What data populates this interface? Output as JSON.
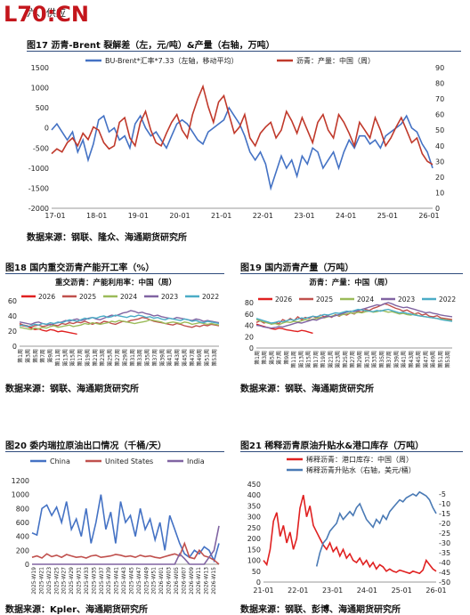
{
  "header": {
    "logo_text": "L70:CN",
    "section": "六、供应"
  },
  "chart_data": [
    {
      "id": "fig17",
      "type": "line",
      "title": "图17  沥青-Brent 裂解差（左，元/吨）&产量（右轴，万吨）",
      "source": "数据来源：钢联、隆众、海通期货研究所",
      "x_ticks": [
        "17-01",
        "18-01",
        "19-01",
        "20-01",
        "21-01",
        "22-01",
        "23-01",
        "24-01",
        "25-01",
        "26-01"
      ],
      "ylim_left": [
        -2000,
        1500
      ],
      "yticks_left": [
        1500,
        1000,
        500,
        0,
        -500,
        -1000,
        -1500,
        -2000
      ],
      "ylim_right": [
        0,
        90
      ],
      "yticks_right": [
        90,
        80,
        70,
        60,
        50,
        40,
        30,
        20,
        10,
        0
      ],
      "series": [
        {
          "name": "BU-Brent*汇率*7.33（左轴，移动平均）",
          "axis": "left",
          "color": "#4472c4",
          "values": [
            -50,
            100,
            -100,
            -300,
            -100,
            -600,
            -300,
            -800,
            -400,
            200,
            300,
            -100,
            0,
            -300,
            -200,
            -500,
            100,
            300,
            0,
            -200,
            -100,
            -300,
            -500,
            -200,
            100,
            200,
            100,
            -100,
            -300,
            -400,
            -100,
            0,
            100,
            200,
            500,
            300,
            100,
            -200,
            -600,
            -800,
            -600,
            -900,
            -1500,
            -1100,
            -700,
            -1000,
            -800,
            -1200,
            -700,
            -900,
            -500,
            -600,
            -1000,
            -800,
            -600,
            -1000,
            -600,
            -300,
            -500,
            -200,
            -200,
            -400,
            -300,
            -500,
            -200,
            -100,
            0,
            100,
            300,
            0,
            -100,
            -400,
            -600,
            -1000
          ]
        },
        {
          "name": "沥青：产量：中国（周）",
          "axis": "right",
          "color": "#c0392b",
          "values": [
            35,
            38,
            36,
            42,
            45,
            40,
            48,
            44,
            52,
            50,
            42,
            38,
            40,
            55,
            58,
            45,
            40,
            55,
            62,
            50,
            42,
            40,
            48,
            55,
            60,
            50,
            45,
            60,
            70,
            78,
            65,
            55,
            68,
            72,
            60,
            48,
            52,
            60,
            45,
            40,
            48,
            52,
            55,
            45,
            50,
            62,
            56,
            48,
            58,
            50,
            42,
            55,
            60,
            50,
            45,
            60,
            55,
            48,
            40,
            55,
            50,
            45,
            58,
            50,
            40,
            45,
            52,
            58,
            50,
            42,
            45,
            35,
            30,
            28
          ]
        }
      ]
    },
    {
      "id": "fig18",
      "type": "line",
      "title": "图18  国内重交沥青产能开工率（%）",
      "subtitle": "重交沥青：产能利用率：中国（周）",
      "source": "数据来源：钢联、海通期货研究所",
      "ylim": [
        0,
        60
      ],
      "yticks": [
        60,
        40,
        20,
        0
      ],
      "x_ticks": [
        "第1周",
        "第3周",
        "第5周",
        "第7周",
        "第9周",
        "第11周",
        "第13周",
        "第15周",
        "第17周",
        "第19周",
        "第21周",
        "第23周",
        "第25周",
        "第27周",
        "第29周",
        "第31周",
        "第33周",
        "第35周",
        "第37周",
        "第39周",
        "第41周",
        "第43周",
        "第45周",
        "第47周",
        "第49周",
        "第51周",
        "第53周"
      ],
      "series": [
        {
          "name": "2026",
          "color": "#e02020",
          "values": [
            28,
            27,
            26,
            24,
            22,
            23,
            21,
            20,
            22,
            21,
            19,
            20,
            19,
            18,
            17,
            16
          ]
        },
        {
          "name": "2025",
          "color": "#c0504d",
          "values": [
            30,
            28,
            27,
            25,
            27,
            28,
            26,
            27,
            29,
            28,
            27,
            30,
            29,
            31,
            30,
            32,
            31,
            33,
            31,
            29,
            31,
            30,
            33,
            32,
            30,
            29,
            31,
            33,
            32,
            34,
            35,
            36,
            38,
            37,
            35,
            33,
            32,
            31,
            30,
            29,
            28,
            30,
            29,
            27,
            26,
            25,
            27,
            26,
            28,
            27,
            29,
            28,
            27
          ]
        },
        {
          "name": "2024",
          "color": "#9bbb59",
          "values": [
            25,
            24,
            23,
            22,
            24,
            23,
            25,
            24,
            26,
            27,
            25,
            26,
            27,
            28,
            26,
            27,
            28,
            30,
            29,
            31,
            30,
            29,
            30,
            31,
            33,
            32,
            34,
            33,
            32,
            31,
            30,
            31,
            32,
            33,
            35,
            34,
            33,
            32,
            30,
            31,
            32,
            31,
            30,
            32,
            31,
            29,
            30,
            31,
            30,
            29,
            30,
            29,
            28
          ]
        },
        {
          "name": "2023",
          "color": "#8064a2",
          "values": [
            32,
            31,
            30,
            29,
            31,
            32,
            30,
            29,
            28,
            30,
            31,
            32,
            34,
            33,
            35,
            36,
            34,
            35,
            37,
            38,
            36,
            35,
            37,
            39,
            41,
            40,
            42,
            44,
            45,
            47,
            46,
            44,
            45,
            43,
            42,
            40,
            41,
            39,
            38,
            37,
            36,
            38,
            37,
            36,
            35,
            34,
            36,
            35,
            33,
            34,
            33,
            32,
            31
          ]
        },
        {
          "name": "2022",
          "color": "#4bacc6",
          "values": [
            27,
            28,
            26,
            27,
            29,
            28,
            30,
            29,
            31,
            30,
            32,
            31,
            33,
            35,
            34,
            33,
            35,
            37,
            36,
            38,
            37,
            39,
            40,
            38,
            39,
            41,
            40,
            39,
            38,
            40,
            39,
            41,
            40,
            38,
            39,
            37,
            38,
            36,
            35,
            37,
            36,
            35,
            34,
            36,
            35,
            33,
            34,
            32,
            31,
            33,
            32,
            31,
            30
          ]
        }
      ]
    },
    {
      "id": "fig19",
      "type": "line",
      "title": "图19  国内沥青产量（万吨）",
      "subtitle": "沥青：产量：中国（周）",
      "source": "数据来源：钢联、海通期货研究所",
      "ylim": [
        0,
        80
      ],
      "yticks": [
        80,
        60,
        40,
        20,
        0
      ],
      "x_ticks": [
        "第1周",
        "第3周",
        "第5周",
        "第7周",
        "第9周",
        "第11周",
        "第13周",
        "第15周",
        "第17周",
        "第19周",
        "第21周",
        "第23周",
        "第25周",
        "第27周",
        "第29周",
        "第31周",
        "第33周",
        "第35周",
        "第37周",
        "第39周",
        "第41周",
        "第43周",
        "第45周",
        "第47周",
        "第49周",
        "第51周",
        "第53周"
      ],
      "series": [
        {
          "name": "2026",
          "color": "#e02020",
          "values": [
            42,
            40,
            38,
            36,
            34,
            33,
            35,
            34,
            32,
            31,
            30,
            29,
            31,
            30,
            28,
            26
          ]
        },
        {
          "name": "2025",
          "color": "#c0504d",
          "values": [
            45,
            48,
            44,
            46,
            42,
            45,
            43,
            50,
            47,
            52,
            48,
            55,
            50,
            54,
            52,
            56,
            53,
            58,
            55,
            57,
            54,
            59,
            56,
            60,
            58,
            62,
            60,
            65,
            63,
            68,
            66,
            70,
            72,
            75,
            78,
            76,
            73,
            70,
            68,
            65,
            67,
            63,
            60,
            62,
            58,
            60,
            56,
            55,
            57,
            53,
            52,
            51,
            50
          ]
        },
        {
          "name": "2024",
          "color": "#9bbb59",
          "values": [
            50,
            48,
            46,
            44,
            42,
            43,
            41,
            44,
            46,
            45,
            47,
            46,
            48,
            50,
            49,
            51,
            52,
            54,
            53,
            55,
            56,
            58,
            57,
            59,
            60,
            62,
            61,
            63,
            62,
            64,
            65,
            63,
            64,
            66,
            65,
            63,
            64,
            62,
            60,
            61,
            59,
            58,
            60,
            57,
            56,
            55,
            54,
            53,
            52,
            51,
            50,
            49,
            48
          ]
        },
        {
          "name": "2023",
          "color": "#8064a2",
          "values": [
            40,
            39,
            37,
            36,
            35,
            36,
            38,
            37,
            39,
            41,
            43,
            45,
            44,
            46,
            48,
            50,
            49,
            52,
            54,
            56,
            55,
            57,
            59,
            61,
            63,
            65,
            64,
            66,
            68,
            70,
            72,
            74,
            76,
            75,
            78,
            80,
            78,
            75,
            73,
            71,
            72,
            70,
            68,
            66,
            64,
            62,
            63,
            61,
            60,
            58,
            57,
            56,
            55
          ]
        },
        {
          "name": "2022",
          "color": "#4bacc6",
          "values": [
            52,
            50,
            48,
            46,
            44,
            45,
            47,
            46,
            48,
            50,
            49,
            51,
            53,
            52,
            54,
            56,
            55,
            57,
            59,
            58,
            60,
            62,
            61,
            63,
            65,
            64,
            66,
            68,
            67,
            66,
            65,
            64,
            66,
            65,
            67,
            68,
            66,
            64,
            62,
            63,
            61,
            60,
            58,
            57,
            56,
            55,
            54,
            53,
            52,
            50,
            49,
            48,
            47
          ]
        }
      ]
    },
    {
      "id": "fig20",
      "type": "line",
      "title": "图20  委内瑞拉原油出口情况（千桶/天）",
      "source": "数据来源：Kpler、海通期货研究所",
      "ylim": [
        0,
        1200
      ],
      "yticks": [
        1200,
        1000,
        800,
        600,
        400,
        200,
        0
      ],
      "x_ticks": [
        "2025-W19",
        "2025-W21",
        "2025-W23",
        "2025-W25",
        "2025-W27",
        "2025-W29",
        "2025-W31",
        "2025-W33",
        "2025-W35",
        "2025-W37",
        "2025-W39",
        "2025-W41",
        "2025-W43",
        "2025-W45",
        "2025-W47",
        "2025-W49",
        "2025-W51",
        "2026-W01",
        "2026-W03",
        "2026-W05",
        "2026-W07",
        "2026-W09",
        "2026-W11",
        "2026-W13",
        "2026-W15"
      ],
      "series": [
        {
          "name": "China",
          "color": "#4472c4",
          "values": [
            450,
            420,
            800,
            850,
            700,
            820,
            600,
            900,
            500,
            650,
            400,
            800,
            300,
            600,
            1000,
            500,
            750,
            300,
            900,
            600,
            700,
            400,
            800,
            500,
            650,
            350,
            600,
            200,
            700,
            500,
            300,
            150,
            100,
            200,
            150,
            250,
            200,
            50,
            300
          ]
        },
        {
          "name": "United States",
          "color": "#c0504d",
          "values": [
            100,
            120,
            90,
            150,
            110,
            130,
            100,
            140,
            120,
            100,
            110,
            90,
            120,
            130,
            100,
            110,
            120,
            140,
            130,
            110,
            120,
            100,
            130,
            110,
            120,
            100,
            90,
            110,
            130,
            150,
            120,
            300,
            100,
            80,
            200,
            120,
            100,
            60,
            0
          ]
        },
        {
          "name": "India",
          "color": "#8064a2",
          "values": [
            0,
            0,
            0,
            0,
            0,
            0,
            0,
            0,
            0,
            0,
            0,
            0,
            0,
            0,
            0,
            0,
            0,
            0,
            0,
            0,
            0,
            0,
            0,
            0,
            0,
            0,
            0,
            0,
            0,
            0,
            150,
            80,
            0,
            0,
            0,
            0,
            100,
            200,
            550
          ]
        }
      ]
    },
    {
      "id": "fig21",
      "type": "line",
      "title": "图21  稀释沥青原油升贴水&港口库存（万吨）",
      "source": "数据来源：钢联、彭博、海通期货研究所",
      "x_ticks": [
        "21-01",
        "22-01",
        "23-01",
        "24-01",
        "25-01",
        "26-01"
      ],
      "ylim_left": [
        0,
        450
      ],
      "yticks_left": [
        450,
        400,
        350,
        300,
        250,
        200,
        150,
        100,
        50,
        0
      ],
      "ylim_right": [
        -50,
        0
      ],
      "yticks_right": [
        -5,
        -10,
        -15,
        -20,
        -25,
        -30,
        -35,
        -40,
        -45,
        -50
      ],
      "series": [
        {
          "name": "稀释沥青：港口库存：中国（周）",
          "axis": "left",
          "color": "#e02020",
          "values": [
            100,
            80,
            150,
            280,
            320,
            210,
            260,
            180,
            230,
            150,
            200,
            340,
            400,
            300,
            350,
            260,
            230,
            200,
            170,
            150,
            180,
            140,
            160,
            120,
            150,
            110,
            130,
            100,
            90,
            110,
            80,
            100,
            70,
            90,
            60,
            80,
            70,
            50,
            60,
            50,
            45,
            55,
            50,
            45,
            40,
            50,
            45,
            40,
            55,
            100,
            80,
            60,
            50
          ]
        },
        {
          "name": "稀释沥青升贴水（右轴，美元/桶）",
          "axis": "right",
          "color": "#4a7ab5",
          "values": [
            null,
            null,
            null,
            null,
            null,
            null,
            null,
            null,
            null,
            null,
            null,
            null,
            null,
            null,
            null,
            null,
            -42,
            -35,
            -30,
            -28,
            -24,
            -22,
            -20,
            -15,
            -18,
            -16,
            -14,
            -16,
            -12,
            -10,
            -14,
            -18,
            -20,
            -22,
            -18,
            -20,
            -16,
            -18,
            -14,
            -12,
            -10,
            -8,
            -9,
            -7,
            -6,
            -5,
            -6,
            -4,
            -5,
            -6,
            -8,
            -12,
            -15
          ]
        }
      ]
    }
  ]
}
